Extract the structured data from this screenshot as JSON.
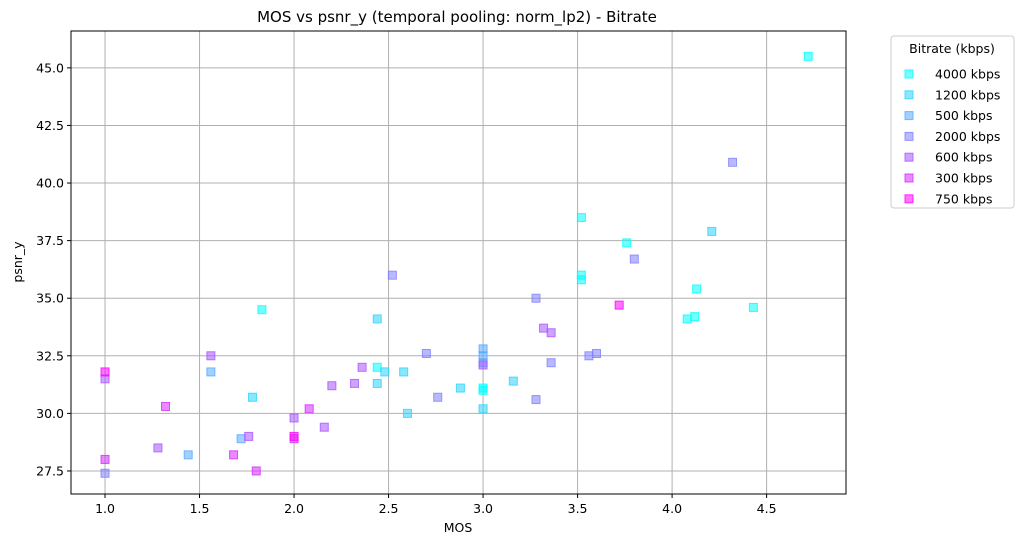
{
  "chart_data": {
    "type": "scatter",
    "title": "MOS vs psnr_y (temporal pooling: norm_lp2) - Bitrate",
    "xlabel": "MOS",
    "ylabel": "psnr_y",
    "xlim": [
      0.82,
      4.92
    ],
    "ylim": [
      26.5,
      46.6
    ],
    "x_ticks": [
      1.0,
      1.5,
      2.0,
      2.5,
      3.0,
      3.5,
      4.0,
      4.5
    ],
    "x_tick_labels": [
      "1.0",
      "1.5",
      "2.0",
      "2.5",
      "3.0",
      "3.5",
      "4.0",
      "4.5"
    ],
    "y_ticks": [
      27.5,
      30.0,
      32.5,
      35.0,
      37.5,
      40.0,
      42.5,
      45.0
    ],
    "y_tick_labels": [
      "27.5",
      "30.0",
      "32.5",
      "35.0",
      "37.5",
      "40.0",
      "42.5",
      "45.0"
    ],
    "grid": true,
    "marker": "square",
    "legend": {
      "title": "Bitrate (kbps)",
      "placement": "outside-right-top"
    },
    "series": [
      {
        "name": "4000 kbps",
        "color": "#00ffff",
        "points": [
          [
            1.83,
            34.5
          ],
          [
            2.44,
            32.0
          ],
          [
            3.0,
            31.1
          ],
          [
            3.0,
            31.0
          ],
          [
            3.52,
            38.5
          ],
          [
            3.52,
            36.0
          ],
          [
            3.52,
            35.8
          ],
          [
            3.76,
            37.4
          ],
          [
            4.13,
            35.4
          ],
          [
            4.12,
            34.2
          ],
          [
            4.08,
            34.1
          ],
          [
            4.43,
            34.6
          ],
          [
            4.72,
            45.5
          ]
        ]
      },
      {
        "name": "1200 kbps",
        "color": "#2bd4ff",
        "points": [
          [
            1.78,
            30.7
          ],
          [
            2.44,
            34.1
          ],
          [
            2.44,
            31.3
          ],
          [
            2.48,
            31.8
          ],
          [
            2.58,
            31.8
          ],
          [
            2.6,
            30.0
          ],
          [
            2.88,
            31.1
          ],
          [
            3.0,
            30.2
          ],
          [
            3.16,
            31.4
          ],
          [
            4.21,
            37.9
          ]
        ]
      },
      {
        "name": "500 kbps",
        "color": "#55aaff",
        "points": [
          [
            1.44,
            28.2
          ],
          [
            1.56,
            31.8
          ],
          [
            1.72,
            28.9
          ],
          [
            3.0,
            32.8
          ],
          [
            3.0,
            32.5
          ],
          [
            3.0,
            32.2
          ]
        ]
      },
      {
        "name": "2000 kbps",
        "color": "#8080ff",
        "points": [
          [
            1.0,
            27.4
          ],
          [
            2.52,
            36.0
          ],
          [
            2.7,
            32.6
          ],
          [
            2.76,
            30.7
          ],
          [
            3.28,
            35.0
          ],
          [
            3.28,
            30.6
          ],
          [
            3.36,
            32.2
          ],
          [
            3.56,
            32.5
          ],
          [
            3.6,
            32.6
          ],
          [
            3.8,
            36.7
          ],
          [
            4.32,
            40.9
          ]
        ]
      },
      {
        "name": "600 kbps",
        "color": "#aa55ff",
        "points": [
          [
            1.0,
            31.5
          ],
          [
            1.28,
            28.5
          ],
          [
            1.56,
            32.5
          ],
          [
            1.76,
            29.0
          ],
          [
            2.0,
            29.8
          ],
          [
            2.16,
            29.4
          ],
          [
            2.2,
            31.2
          ],
          [
            2.32,
            31.3
          ],
          [
            2.36,
            32.0
          ],
          [
            3.0,
            32.1
          ],
          [
            3.32,
            33.7
          ],
          [
            3.36,
            33.5
          ]
        ]
      },
      {
        "name": "300 kbps",
        "color": "#d42bff",
        "points": [
          [
            1.0,
            28.0
          ],
          [
            1.32,
            30.3
          ],
          [
            1.68,
            28.2
          ],
          [
            1.8,
            27.5
          ],
          [
            2.0,
            28.9
          ],
          [
            2.08,
            30.2
          ]
        ]
      },
      {
        "name": "750 kbps",
        "color": "#ff00ff",
        "points": [
          [
            1.0,
            31.8
          ],
          [
            2.0,
            29.0
          ],
          [
            3.72,
            34.7
          ]
        ]
      }
    ]
  }
}
